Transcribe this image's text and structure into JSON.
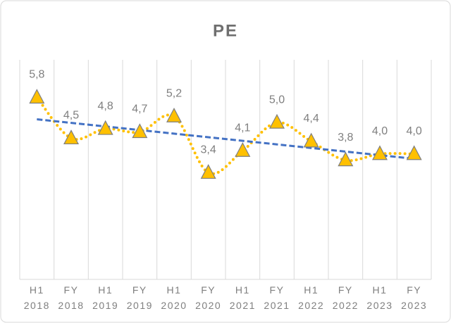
{
  "chart_data": {
    "type": "line",
    "title": "PE",
    "categories": [
      [
        "H1",
        "2018"
      ],
      [
        "FY",
        "2018"
      ],
      [
        "H1",
        "2019"
      ],
      [
        "FY",
        "2019"
      ],
      [
        "H1",
        "2020"
      ],
      [
        "FY",
        "2020"
      ],
      [
        "H1",
        "2021"
      ],
      [
        "FY",
        "2021"
      ],
      [
        "H1",
        "2022"
      ],
      [
        "FY",
        "2022"
      ],
      [
        "H1",
        "2023"
      ],
      [
        "FY",
        "2023"
      ]
    ],
    "series": [
      {
        "name": "PE",
        "color": "#ffc000",
        "values": [
          5.8,
          4.5,
          4.8,
          4.7,
          5.2,
          3.4,
          4.1,
          5.0,
          4.4,
          3.8,
          4.0,
          4.0
        ],
        "value_labels": [
          "5,8",
          "4,5",
          "4,8",
          "4,7",
          "5,2",
          "3,4",
          "4,1",
          "5,0",
          "4,4",
          "3,8",
          "4,0",
          "4,0"
        ]
      }
    ],
    "ylim": [
      0,
      7
    ],
    "trendline": "linear",
    "trendline_color": "#4472c4",
    "grid": "vertical"
  }
}
